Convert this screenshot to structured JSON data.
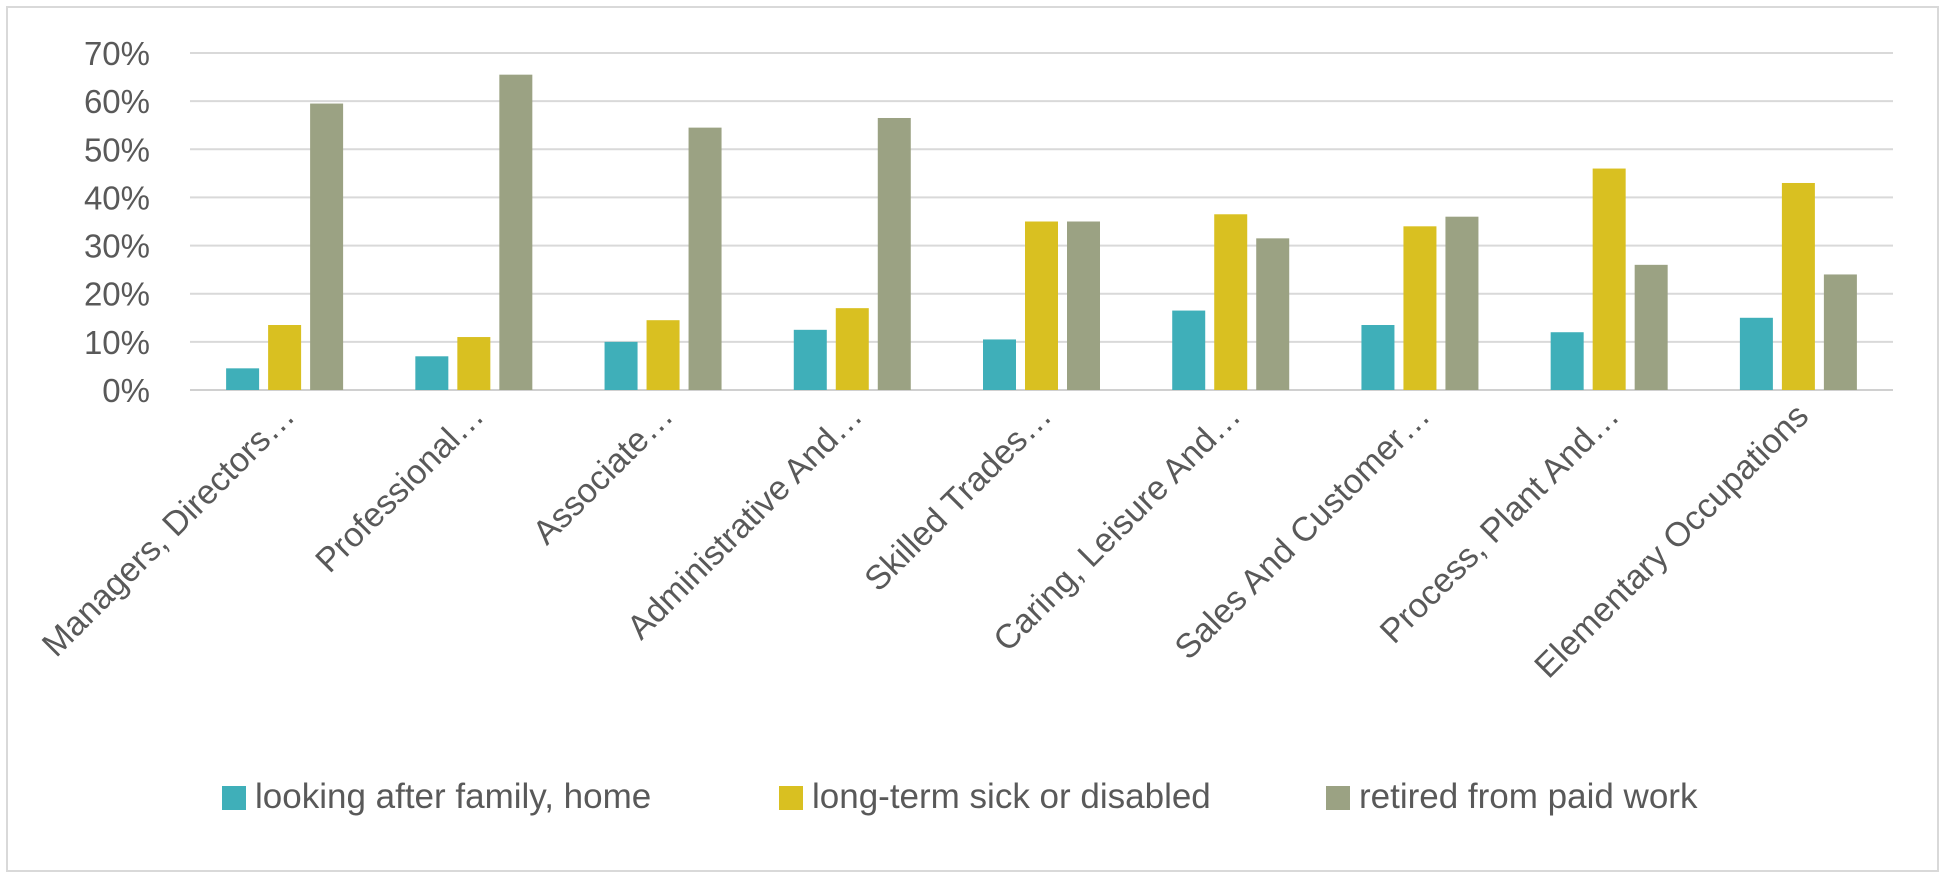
{
  "chart_data": {
    "type": "bar",
    "categories": [
      "Managers, Directors…",
      "Professional…",
      "Associate…",
      "Administrative And…",
      "Skilled Trades…",
      "Caring, Leisure And…",
      "Sales And Customer…",
      "Process, Plant And…",
      "Elementary Occupations"
    ],
    "series": [
      {
        "name": "looking after family, home",
        "color": "#3fafb9",
        "values": [
          4.5,
          7,
          10,
          12.5,
          10.5,
          16.5,
          13.5,
          12,
          15
        ]
      },
      {
        "name": "long-term sick or disabled",
        "color": "#d9c021",
        "values": [
          13.5,
          11,
          14.5,
          17,
          35,
          36.5,
          34,
          46,
          43
        ]
      },
      {
        "name": "retired from paid work",
        "color": "#9ba283",
        "values": [
          59.5,
          65.5,
          54.5,
          56.5,
          35,
          31.5,
          36,
          26,
          24
        ]
      }
    ],
    "ylim": [
      0,
      70
    ],
    "yticks": [
      0,
      10,
      20,
      30,
      40,
      50,
      60,
      70
    ],
    "ytick_labels": [
      "0%",
      "10%",
      "20%",
      "30%",
      "40%",
      "50%",
      "60%",
      "70%"
    ],
    "grid": true,
    "legend": "bottom",
    "title": "",
    "xlabel": "",
    "ylabel": ""
  }
}
